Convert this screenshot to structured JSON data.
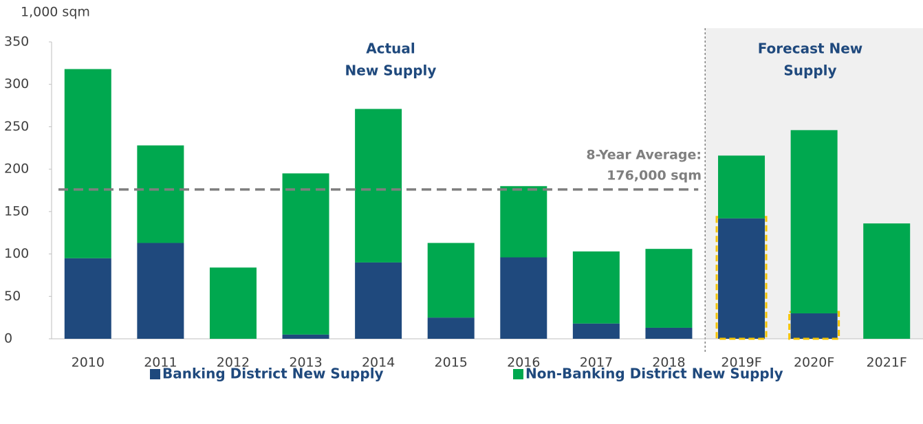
{
  "chart_data": {
    "type": "stacked_bar",
    "y_axis_label": "1,000 sqm",
    "categories": [
      "2010",
      "2011",
      "2012",
      "2013",
      "2014",
      "2015",
      "2016",
      "2017",
      "2018",
      "2019F",
      "2020F",
      "2021F"
    ],
    "series": [
      {
        "name": "Banking District New Supply",
        "color": "#1f497d",
        "values": [
          95,
          113,
          0,
          5,
          90,
          25,
          96,
          18,
          13,
          142,
          30,
          0
        ]
      },
      {
        "name": "Non-Banking District New Supply",
        "color": "#00a84f",
        "values": [
          223,
          115,
          84,
          190,
          181,
          88,
          84,
          85,
          93,
          74,
          216,
          136
        ]
      }
    ],
    "ylim": [
      0,
      350
    ],
    "yticks": [
      0,
      50,
      100,
      150,
      200,
      250,
      300,
      350
    ],
    "average": {
      "value": 176,
      "label": [
        "8-Year Average:",
        "176,000 sqm"
      ]
    },
    "annotations": [
      [
        "Actual",
        "New Supply"
      ],
      [
        "Forecast New",
        "Supply"
      ]
    ],
    "legend": "bottom"
  }
}
